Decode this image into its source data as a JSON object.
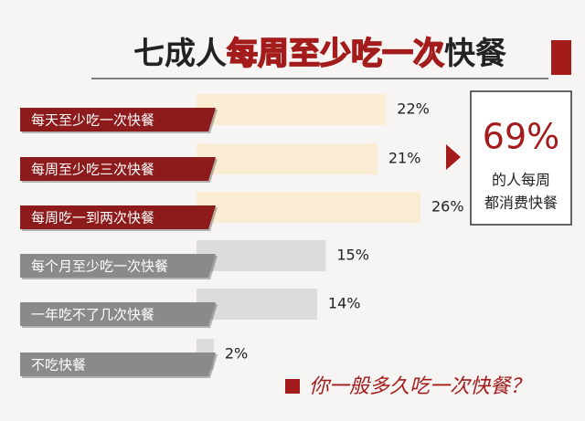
{
  "chart_data": {
    "type": "bar",
    "title": [
      "七成人",
      "每周至少吃一次",
      "快餐"
    ],
    "categories": [
      "每天至少吃一次快餐",
      "每周至少吃三次快餐",
      "每周吃一到两次快餐",
      "每个月至少吃一次快餐",
      "一年吃不了几次快餐",
      "不吃快餐"
    ],
    "values": [
      22,
      21,
      26,
      15,
      14,
      2
    ],
    "value_labels": [
      "22%",
      "21%",
      "26%",
      "15%",
      "14%",
      "2%"
    ],
    "bar_colors": [
      "#fbedd3",
      "#fbedd3",
      "#fbedd3",
      "#dcdcdc",
      "#dcdcdc",
      "#dcdcdc"
    ],
    "label_colors": [
      "#8e1b1b",
      "#8e1b1b",
      "#8e1b1b",
      "#8a8a8a",
      "#8a8a8a",
      "#8a8a8a"
    ],
    "callout": {
      "value": "69%",
      "lines": [
        "的人每周",
        "都消费快餐"
      ]
    },
    "question": "你一般多久吃一次快餐？"
  }
}
